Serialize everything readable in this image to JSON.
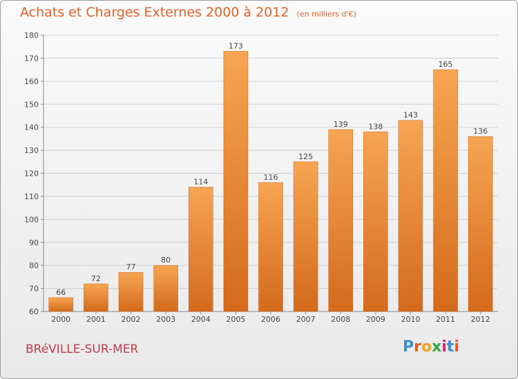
{
  "title": "Achats et Charges Externes 2000 à 2012",
  "unit_note": "(en milliers d'€)",
  "commune": "BRéVILLE-SUR-MER",
  "logo": {
    "text": "Proxiti",
    "letter_colors": [
      "#3a8fd0",
      "#e05a2a",
      "#f0a020",
      "#3aa84a",
      "#d02a6a",
      "#3a8fd0",
      "#e05a2a"
    ]
  },
  "colors": {
    "bar_top": "#f6a552",
    "bar_bottom": "#d46a1c",
    "title": "#e0622a",
    "commune": "#c23a4a",
    "grid": "#cfcfcf"
  },
  "chart_data": {
    "type": "bar",
    "categories": [
      "2000",
      "2001",
      "2002",
      "2003",
      "2004",
      "2005",
      "2006",
      "2007",
      "2008",
      "2009",
      "2010",
      "2011",
      "2012"
    ],
    "values": [
      66,
      72,
      77,
      80,
      114,
      173,
      116,
      125,
      139,
      138,
      143,
      165,
      136
    ],
    "ylim": [
      60,
      180
    ],
    "yticks": [
      60,
      70,
      80,
      90,
      100,
      110,
      120,
      130,
      140,
      150,
      160,
      170,
      180
    ],
    "grid": true
  }
}
